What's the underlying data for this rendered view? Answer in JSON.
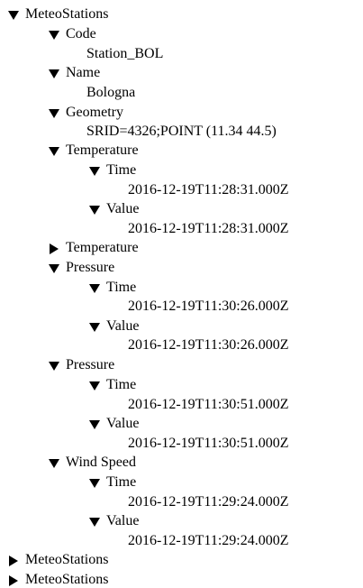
{
  "tree": {
    "root": {
      "label": "MeteoStations",
      "expanded": true,
      "children": {
        "code": {
          "label": "Code",
          "expanded": true,
          "value": "Station_BOL"
        },
        "name": {
          "label": "Name",
          "expanded": true,
          "value": "Bologna"
        },
        "geometry": {
          "label": "Geometry",
          "expanded": true,
          "value": "SRID=4326;POINT (11.34 44.5)"
        },
        "temperature_1": {
          "label": "Temperature",
          "expanded": true,
          "time": {
            "label": "Time",
            "expanded": true,
            "value": "2016-12-19T11:28:31.000Z"
          },
          "value": {
            "label": "Value",
            "expanded": true,
            "value": "2016-12-19T11:28:31.000Z"
          }
        },
        "temperature_2": {
          "label": "Temperature",
          "expanded": false
        },
        "pressure_1": {
          "label": "Pressure",
          "expanded": true,
          "time": {
            "label": "Time",
            "expanded": true,
            "value": "2016-12-19T11:30:26.000Z"
          },
          "value": {
            "label": "Value",
            "expanded": true,
            "value": "2016-12-19T11:30:26.000Z"
          }
        },
        "pressure_2": {
          "label": "Pressure",
          "expanded": true,
          "time": {
            "label": "Time",
            "expanded": true,
            "value": "2016-12-19T11:30:51.000Z"
          },
          "value": {
            "label": "Value",
            "expanded": true,
            "value": "2016-12-19T11:30:51.000Z"
          }
        },
        "wind_speed": {
          "label": "Wind Speed",
          "expanded": true,
          "time": {
            "label": "Time",
            "expanded": true,
            "value": "2016-12-19T11:29:24.000Z"
          },
          "value": {
            "label": "Value",
            "expanded": true,
            "value": "2016-12-19T11:29:24.000Z"
          }
        }
      }
    },
    "collapsed_roots": [
      {
        "label": "MeteoStations",
        "expanded": false
      },
      {
        "label": "MeteoStations",
        "expanded": false
      }
    ]
  },
  "icons": {
    "expanded": "triangle-down-icon",
    "collapsed": "triangle-right-icon"
  }
}
